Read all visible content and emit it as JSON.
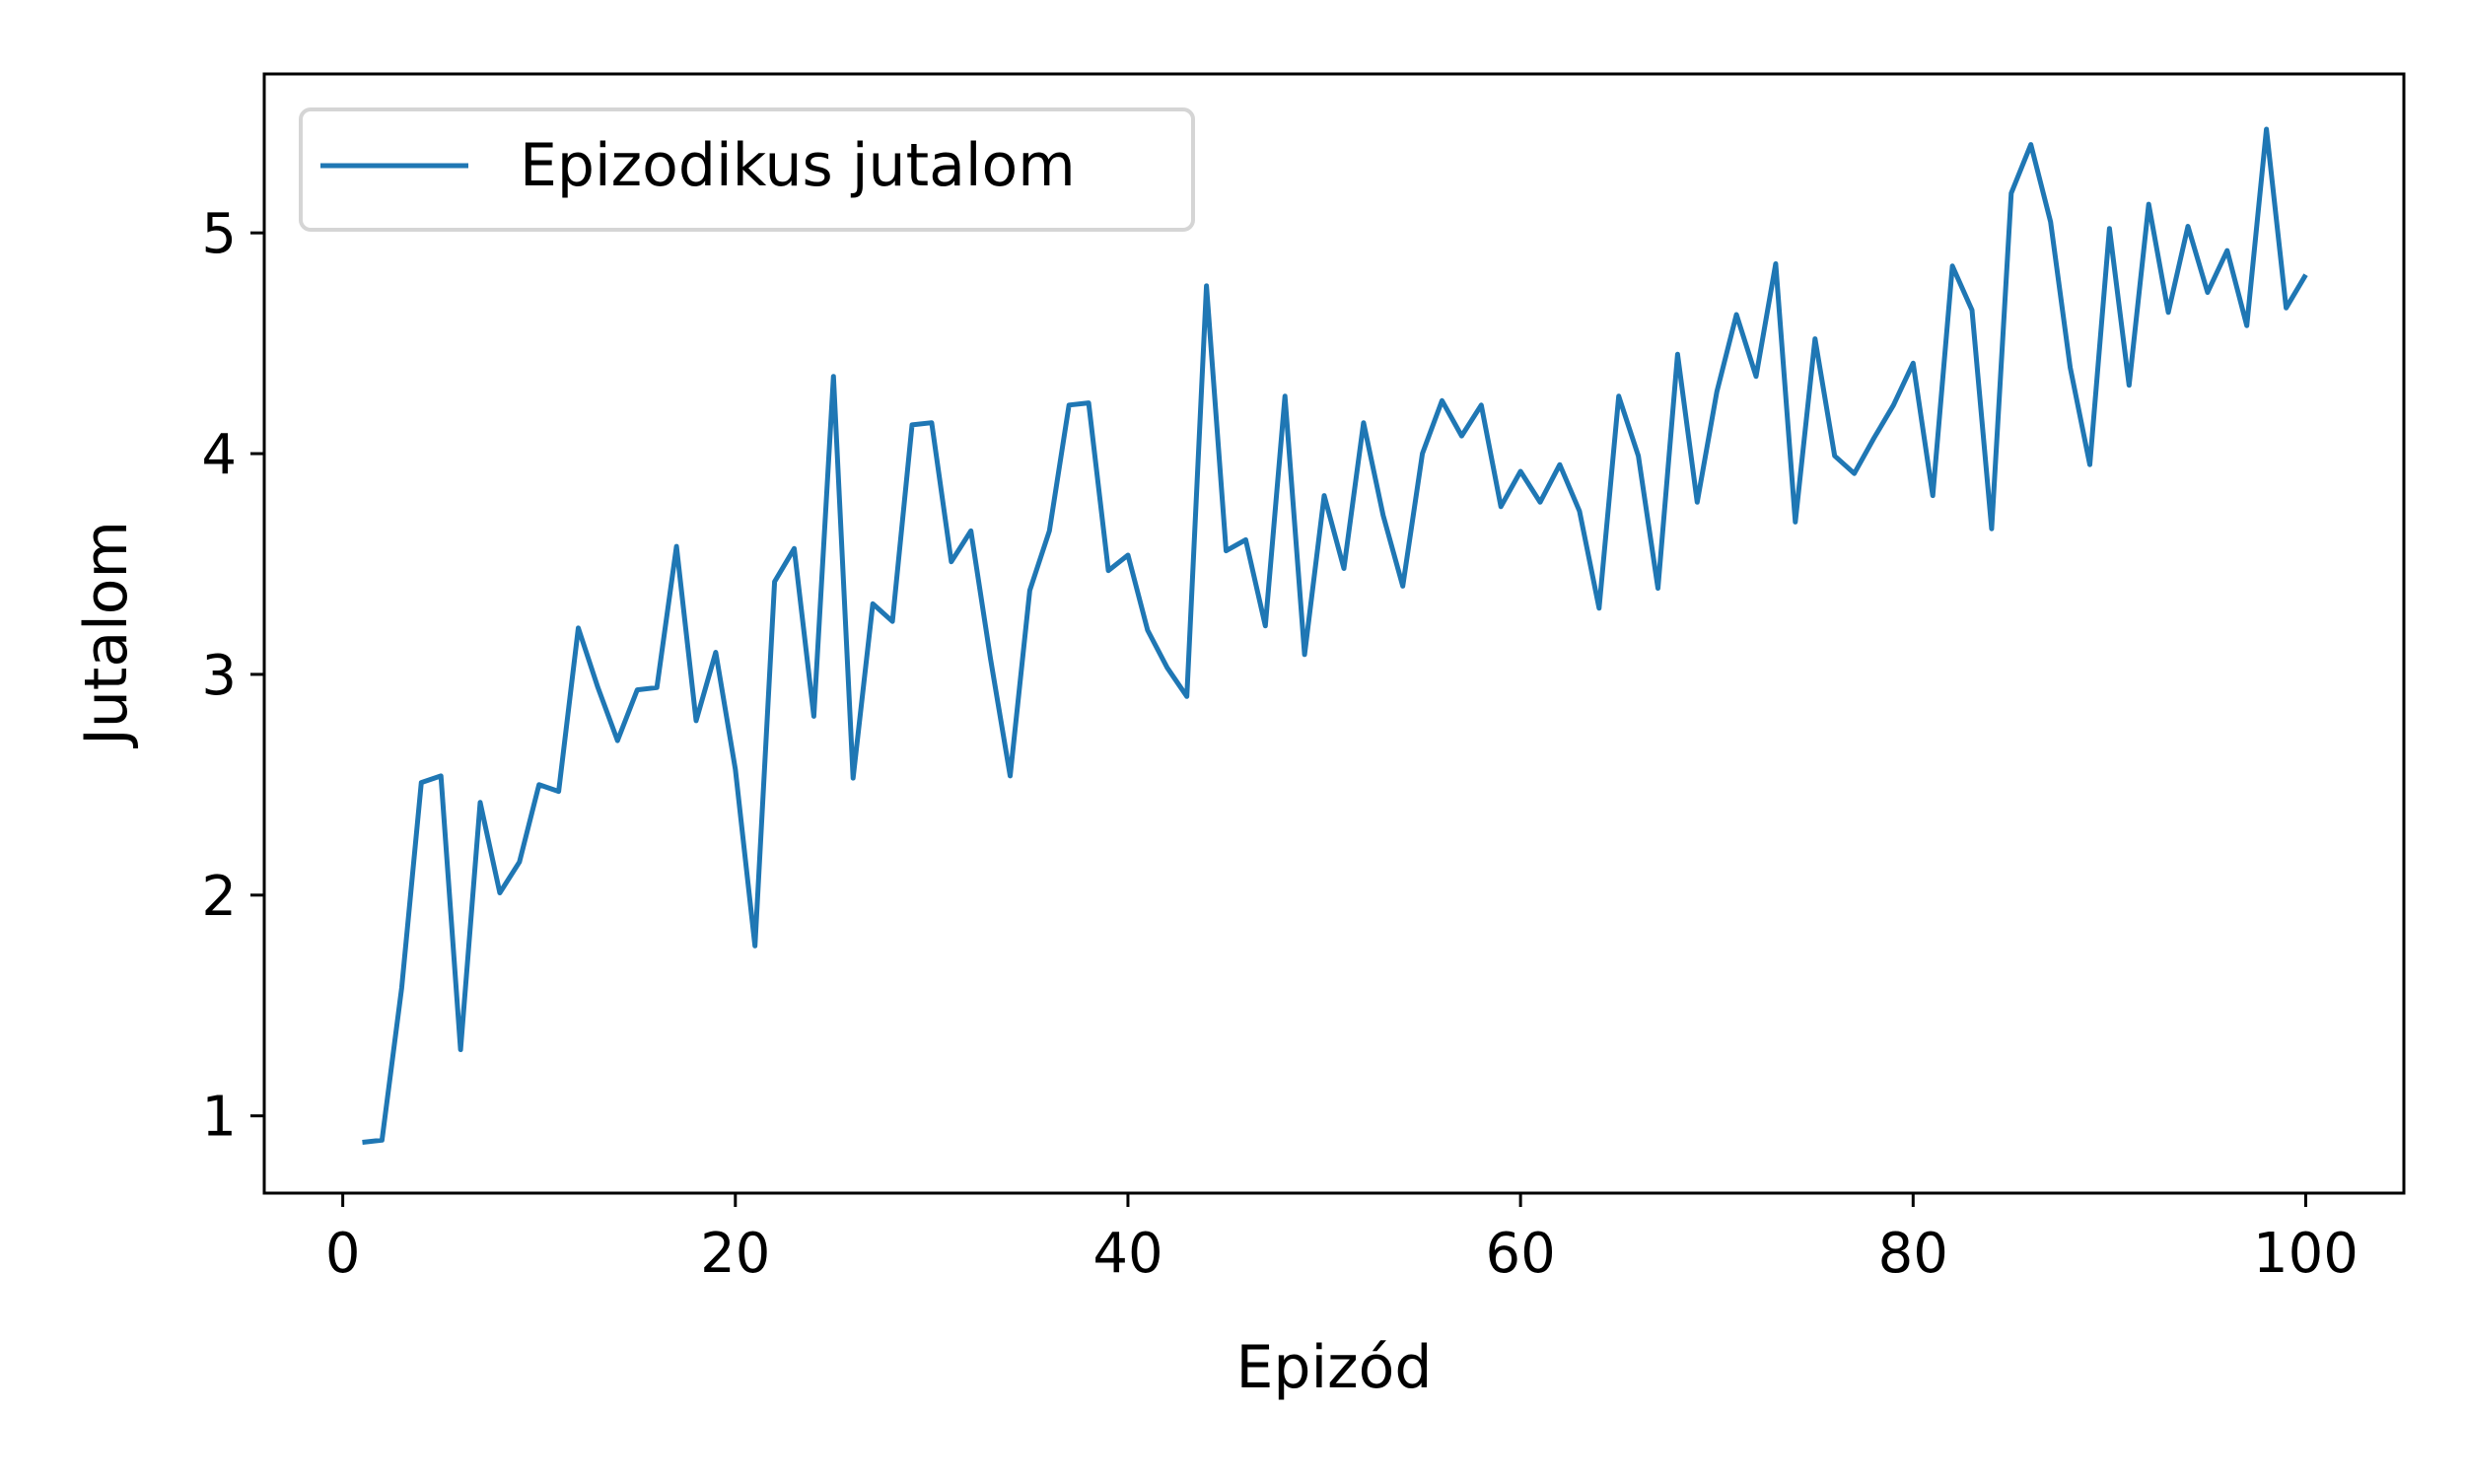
{
  "chart_data": {
    "type": "line",
    "title": "",
    "xlabel": "Epizód",
    "ylabel": "Jutalom",
    "xlim": [
      -4,
      105
    ],
    "ylim": [
      0.65,
      5.72
    ],
    "xticks": [
      0,
      20,
      40,
      60,
      80,
      100
    ],
    "yticks": [
      1,
      2,
      3,
      4,
      5
    ],
    "xtick_labels": [
      "0",
      "20",
      "40",
      "60",
      "80",
      "100"
    ],
    "ytick_labels": [
      "1",
      "2",
      "3",
      "4",
      "5"
    ],
    "grid": false,
    "legend_position": "upper-left",
    "series": [
      {
        "name": "Epizodikus jutalom",
        "color": "#1f77b4",
        "x": [
          1,
          2,
          3,
          4,
          5,
          6,
          7,
          8,
          9,
          10,
          11,
          12,
          13,
          14,
          15,
          16,
          17,
          18,
          19,
          20,
          21,
          22,
          23,
          24,
          25,
          26,
          27,
          28,
          29,
          30,
          31,
          32,
          33,
          34,
          35,
          36,
          37,
          38,
          39,
          40,
          41,
          42,
          43,
          44,
          45,
          46,
          47,
          48,
          49,
          50,
          51,
          52,
          53,
          54,
          55,
          56,
          57,
          58,
          59,
          60,
          61,
          62,
          63,
          64,
          65,
          66,
          67,
          68,
          69,
          70,
          71,
          72,
          73,
          74,
          75,
          76,
          77,
          78,
          79,
          80,
          81,
          82,
          83,
          84,
          85,
          86,
          87,
          88,
          89,
          90,
          91,
          92,
          93,
          94,
          95,
          96,
          97,
          98,
          99,
          100
        ],
        "values": [
          0.88,
          0.89,
          1.58,
          2.51,
          2.54,
          1.3,
          2.42,
          2.01,
          2.15,
          2.5,
          2.47,
          3.21,
          2.94,
          2.7,
          2.93,
          2.94,
          3.58,
          2.79,
          3.1,
          2.57,
          1.77,
          3.42,
          3.57,
          2.81,
          4.35,
          2.53,
          3.32,
          3.24,
          4.13,
          4.14,
          3.51,
          3.65,
          3.07,
          2.54,
          3.38,
          3.65,
          4.22,
          4.23,
          3.47,
          3.54,
          3.2,
          3.03,
          2.9,
          4.76,
          3.56,
          3.61,
          3.22,
          4.26,
          3.09,
          3.81,
          3.48,
          4.14,
          3.72,
          3.4,
          4.0,
          4.24,
          4.08,
          4.22,
          3.76,
          3.92,
          3.78,
          3.95,
          3.74,
          3.3,
          4.26,
          3.99,
          3.39,
          4.45,
          3.78,
          4.28,
          4.63,
          4.35,
          4.86,
          3.69,
          4.52,
          3.99,
          3.91,
          4.07,
          4.22,
          4.41,
          3.81,
          4.85,
          4.65,
          3.66,
          5.18,
          5.4,
          5.05,
          4.39,
          3.95,
          5.02,
          4.31,
          5.13,
          4.64,
          5.03,
          4.73,
          4.92,
          4.58,
          5.47,
          4.66,
          4.81
        ]
      }
    ]
  }
}
